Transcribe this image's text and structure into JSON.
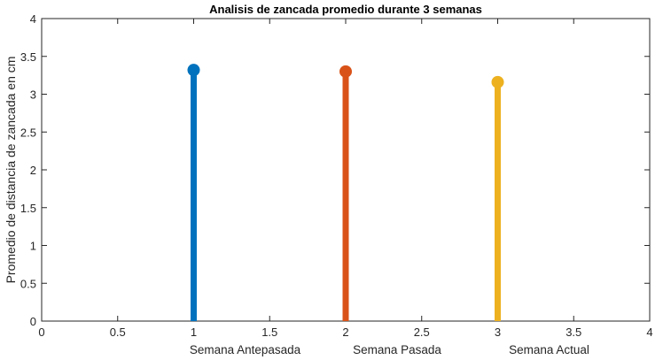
{
  "chart_data": {
    "type": "stem",
    "title": "Analisis de zancada promedio durante 3 semanas",
    "xlabel": "",
    "ylabel": "Promedio de distancia de zancada en cm",
    "xlim": [
      0,
      4
    ],
    "ylim": [
      0,
      4
    ],
    "xticks": [
      "0",
      "0.5",
      "1",
      "1.5",
      "2",
      "2.5",
      "3",
      "3.5",
      "4"
    ],
    "yticks": [
      "0",
      "0.5",
      "1",
      "1.5",
      "2",
      "2.5",
      "3",
      "3.5",
      "4"
    ],
    "grid": false,
    "legend": "none",
    "category_labels": [
      "Semana Antepasada",
      "Semana Pasada",
      "Semana Actual"
    ],
    "series": [
      {
        "x": 1,
        "value": 3.32,
        "color": "#0072BD"
      },
      {
        "x": 2,
        "value": 3.3,
        "color": "#D95319"
      },
      {
        "x": 3,
        "value": 3.16,
        "color": "#EDB120"
      }
    ]
  }
}
